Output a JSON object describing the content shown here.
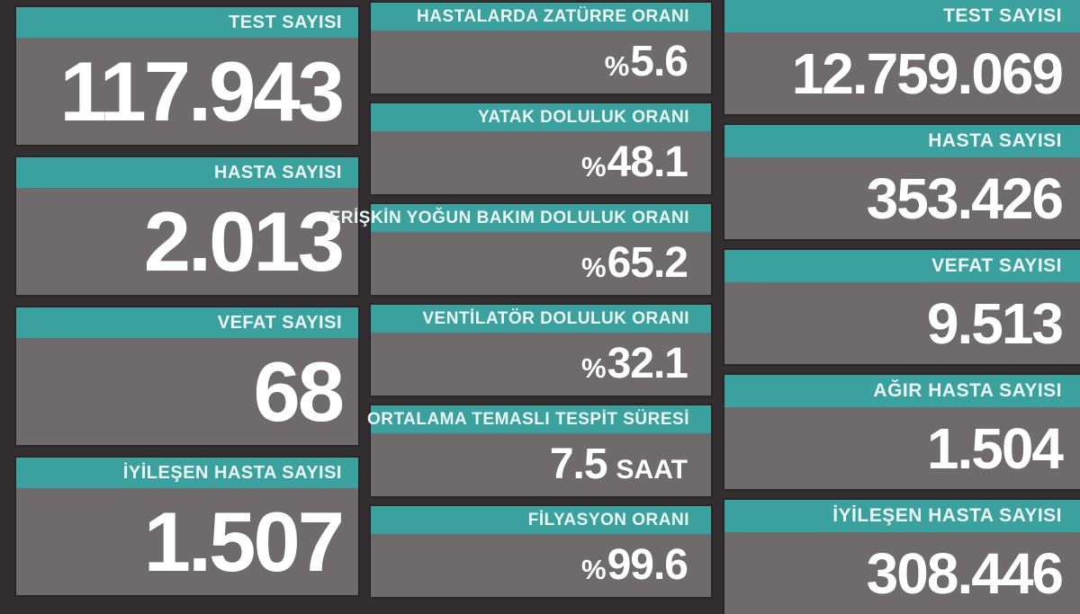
{
  "colors": {
    "accent_teal": "#3AA19E",
    "card_gray": "#6F6B6C",
    "background_dark": "#332F30",
    "value_text": "#FFFFFF",
    "header_text": "#EAF7F6"
  },
  "chart_data": {
    "type": "table",
    "groups": [
      {
        "id": "daily-counts",
        "rows": [
          {
            "label": "TEST SAYISI",
            "value": "117.943"
          },
          {
            "label": "HASTA SAYISI",
            "value": "2.013"
          },
          {
            "label": "VEFAT SAYISI",
            "value": "68"
          },
          {
            "label": "İYİLEŞEN HASTA SAYISI",
            "value": "1.507"
          }
        ]
      },
      {
        "id": "rates",
        "rows": [
          {
            "label": "HASTALARDA ZATÜRRE ORANI",
            "prefix": "%",
            "value": "5.6"
          },
          {
            "label": "YATAK DOLULUK ORANI",
            "prefix": "%",
            "value": "48.1"
          },
          {
            "label": "ERİŞKİN YOĞUN BAKIM DOLULUK ORANI",
            "prefix": "%",
            "value": "65.2"
          },
          {
            "label": "VENTİLATÖR DOLULUK ORANI",
            "prefix": "%",
            "value": "32.1"
          },
          {
            "label": "ORTALAMA TEMASLI TESPİT SÜRESİ",
            "value": "7.5",
            "suffix": "SAAT"
          },
          {
            "label": "FİLYASYON ORANI",
            "prefix": "%",
            "value": "99.6"
          }
        ]
      },
      {
        "id": "cumulative-counts",
        "rows": [
          {
            "label": "TEST SAYISI",
            "value": "12.759.069"
          },
          {
            "label": "HASTA SAYISI",
            "value": "353.426"
          },
          {
            "label": "VEFAT SAYISI",
            "value": "9.513"
          },
          {
            "label": "AĞIR HASTA SAYISI",
            "value": "1.504"
          },
          {
            "label": "İYİLEŞEN HASTA SAYISI",
            "value": "308.446"
          }
        ]
      }
    ]
  }
}
